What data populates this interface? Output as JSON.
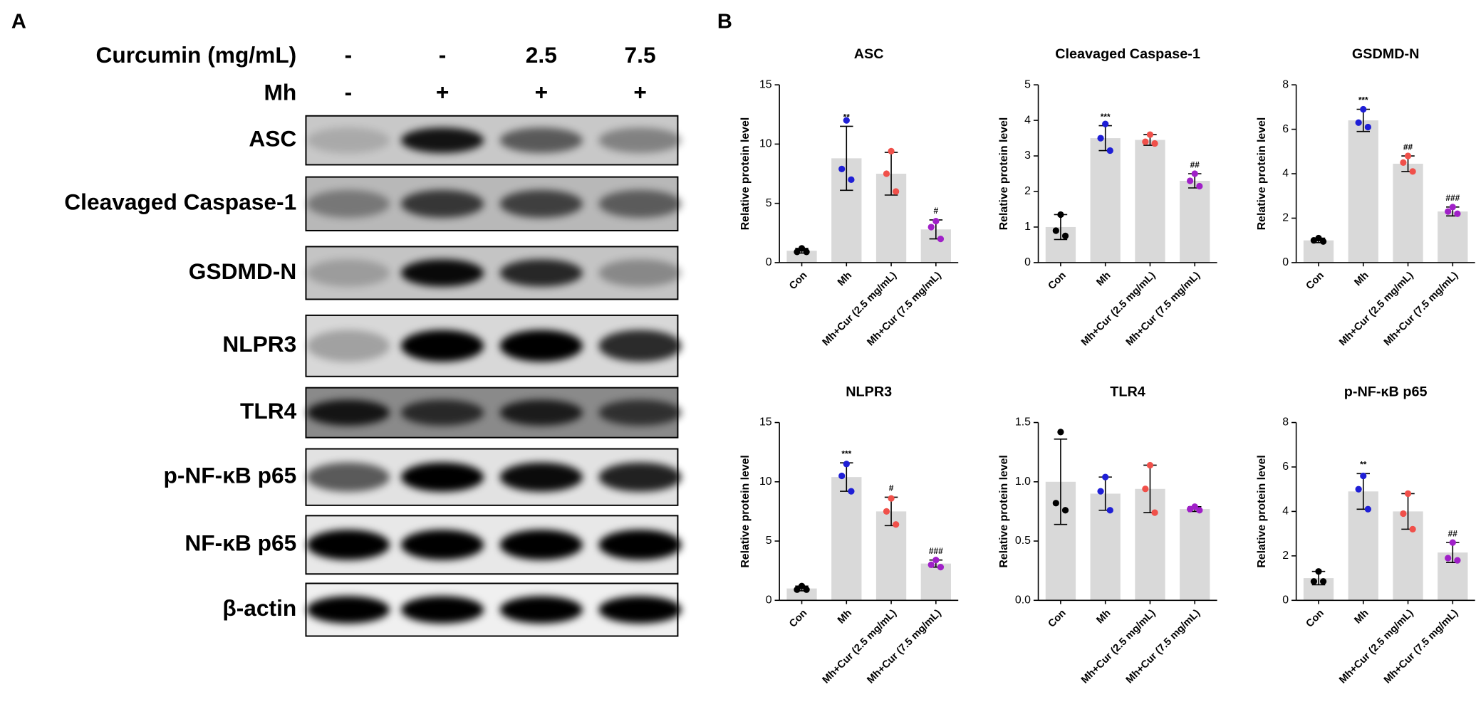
{
  "panel_labels": {
    "a": "A",
    "b": "B"
  },
  "blot": {
    "treatments": [
      {
        "name": "Curcumin (mg/mL)",
        "levels": [
          "-",
          "-",
          "2.5",
          "7.5"
        ]
      },
      {
        "name": "Mh",
        "levels": [
          "-",
          "+",
          "+",
          "+"
        ]
      }
    ],
    "proteins": [
      "ASC",
      "Cleavaged Caspase-1",
      "GSDMD-N",
      "NLPR3",
      "TLR4",
      "p-NF-κB p65",
      "NF-κB p65",
      "β-actin"
    ]
  },
  "chart_data": [
    {
      "type": "bar",
      "title": "ASC",
      "y_label": "Relative protein level",
      "categories": [
        "Con",
        "Mh",
        "Mh+Cur (2.5 mg/mL)",
        "Mh+Cur (7.5 mg/mL)"
      ],
      "values": [
        1.0,
        8.8,
        7.5,
        2.8
      ],
      "errors": [
        0.2,
        2.7,
        1.8,
        0.8
      ],
      "points": [
        [
          1.2,
          0.9,
          0.9
        ],
        [
          12.0,
          7.9,
          7.0
        ],
        [
          9.4,
          7.5,
          6.0
        ],
        [
          3.5,
          3.0,
          2.0
        ]
      ],
      "point_colors": [
        "#000000",
        "#1f1fd6",
        "#f0504a",
        "#a020c8"
      ],
      "bar_color": "#d9d9d9",
      "annotations": [
        null,
        "**",
        null,
        "#"
      ],
      "ylim": [
        0,
        15
      ],
      "yticks": [
        0,
        5,
        10,
        15
      ]
    },
    {
      "type": "bar",
      "title": "Cleavaged Caspase-1",
      "y_label": "Relative protein level",
      "categories": [
        "Con",
        "Mh",
        "Mh+Cur (2.5 mg/mL)",
        "Mh+Cur (7.5 mg/mL)"
      ],
      "values": [
        1.0,
        3.5,
        3.45,
        2.3
      ],
      "errors": [
        0.35,
        0.35,
        0.15,
        0.2
      ],
      "points": [
        [
          1.35,
          0.9,
          0.75
        ],
        [
          3.9,
          3.5,
          3.15
        ],
        [
          3.6,
          3.4,
          3.35
        ],
        [
          2.5,
          2.3,
          2.15
        ]
      ],
      "point_colors": [
        "#000000",
        "#1f1fd6",
        "#f0504a",
        "#a020c8"
      ],
      "bar_color": "#d9d9d9",
      "annotations": [
        null,
        "***",
        null,
        "##"
      ],
      "ylim": [
        0,
        5
      ],
      "yticks": [
        0,
        1,
        2,
        3,
        4,
        5
      ]
    },
    {
      "type": "bar",
      "title": "GSDMD-N",
      "y_label": "Relative protein level",
      "categories": [
        "Con",
        "Mh",
        "Mh+Cur (2.5 mg/mL)",
        "Mh+Cur (7.5 mg/mL)"
      ],
      "values": [
        1.0,
        6.4,
        4.45,
        2.3
      ],
      "errors": [
        0.1,
        0.5,
        0.35,
        0.2
      ],
      "points": [
        [
          1.1,
          1.0,
          0.95
        ],
        [
          6.9,
          6.3,
          6.1
        ],
        [
          4.8,
          4.5,
          4.1
        ],
        [
          2.5,
          2.3,
          2.2
        ]
      ],
      "point_colors": [
        "#000000",
        "#1f1fd6",
        "#f0504a",
        "#a020c8"
      ],
      "bar_color": "#d9d9d9",
      "annotations": [
        null,
        "***",
        "##",
        "###"
      ],
      "ylim": [
        0,
        8
      ],
      "yticks": [
        0,
        2,
        4,
        6,
        8
      ]
    },
    {
      "type": "bar",
      "title": "NLPR3",
      "y_label": "Relative protein level",
      "categories": [
        "Con",
        "Mh",
        "Mh+Cur (2.5 mg/mL)",
        "Mh+Cur (7.5 mg/mL)"
      ],
      "values": [
        1.0,
        10.4,
        7.5,
        3.1
      ],
      "errors": [
        0.2,
        1.2,
        1.2,
        0.3
      ],
      "points": [
        [
          1.2,
          0.9,
          0.9
        ],
        [
          11.5,
          10.5,
          9.2
        ],
        [
          8.6,
          7.5,
          6.4
        ],
        [
          3.4,
          3.0,
          2.8
        ]
      ],
      "point_colors": [
        "#000000",
        "#1f1fd6",
        "#f0504a",
        "#a020c8"
      ],
      "bar_color": "#d9d9d9",
      "annotations": [
        null,
        "***",
        "#",
        "###"
      ],
      "ylim": [
        0,
        15
      ],
      "yticks": [
        0,
        5,
        10,
        15
      ]
    },
    {
      "type": "bar",
      "title": "TLR4",
      "y_label": "Relative protein level",
      "categories": [
        "Con",
        "Mh",
        "Mh+Cur (2.5 mg/mL)",
        "Mh+Cur (7.5 mg/mL)"
      ],
      "values": [
        1.0,
        0.9,
        0.94,
        0.77
      ],
      "errors": [
        0.36,
        0.14,
        0.2,
        0.02
      ],
      "points": [
        [
          1.42,
          0.82,
          0.76
        ],
        [
          1.04,
          0.92,
          0.76
        ],
        [
          1.14,
          0.94,
          0.74
        ],
        [
          0.79,
          0.77,
          0.76
        ]
      ],
      "point_colors": [
        "#000000",
        "#1f1fd6",
        "#f0504a",
        "#a020c8"
      ],
      "bar_color": "#d9d9d9",
      "annotations": [
        null,
        null,
        null,
        null
      ],
      "ylim": [
        0,
        1.5
      ],
      "yticks": [
        {
          "value": 0,
          "label": "0.0"
        },
        0.5,
        {
          "value": 1,
          "label": "1.0"
        },
        1.5
      ]
    },
    {
      "type": "bar",
      "title": "p-NF-κB p65",
      "y_label": "Relative protein level",
      "categories": [
        "Con",
        "Mh",
        "Mh+Cur (2.5 mg/mL)",
        "Mh+Cur (7.5 mg/mL)"
      ],
      "values": [
        1.0,
        4.9,
        4.0,
        2.15
      ],
      "errors": [
        0.3,
        0.8,
        0.8,
        0.45
      ],
      "points": [
        [
          1.3,
          0.85,
          0.85
        ],
        [
          5.6,
          5.0,
          4.1
        ],
        [
          4.8,
          3.9,
          3.2
        ],
        [
          2.6,
          1.9,
          1.8
        ]
      ],
      "point_colors": [
        "#000000",
        "#1f1fd6",
        "#f0504a",
        "#a020c8"
      ],
      "bar_color": "#d9d9d9",
      "annotations": [
        null,
        "**",
        null,
        "##"
      ],
      "ylim": [
        0,
        8
      ],
      "yticks": [
        0,
        2,
        4,
        6,
        8
      ]
    }
  ]
}
